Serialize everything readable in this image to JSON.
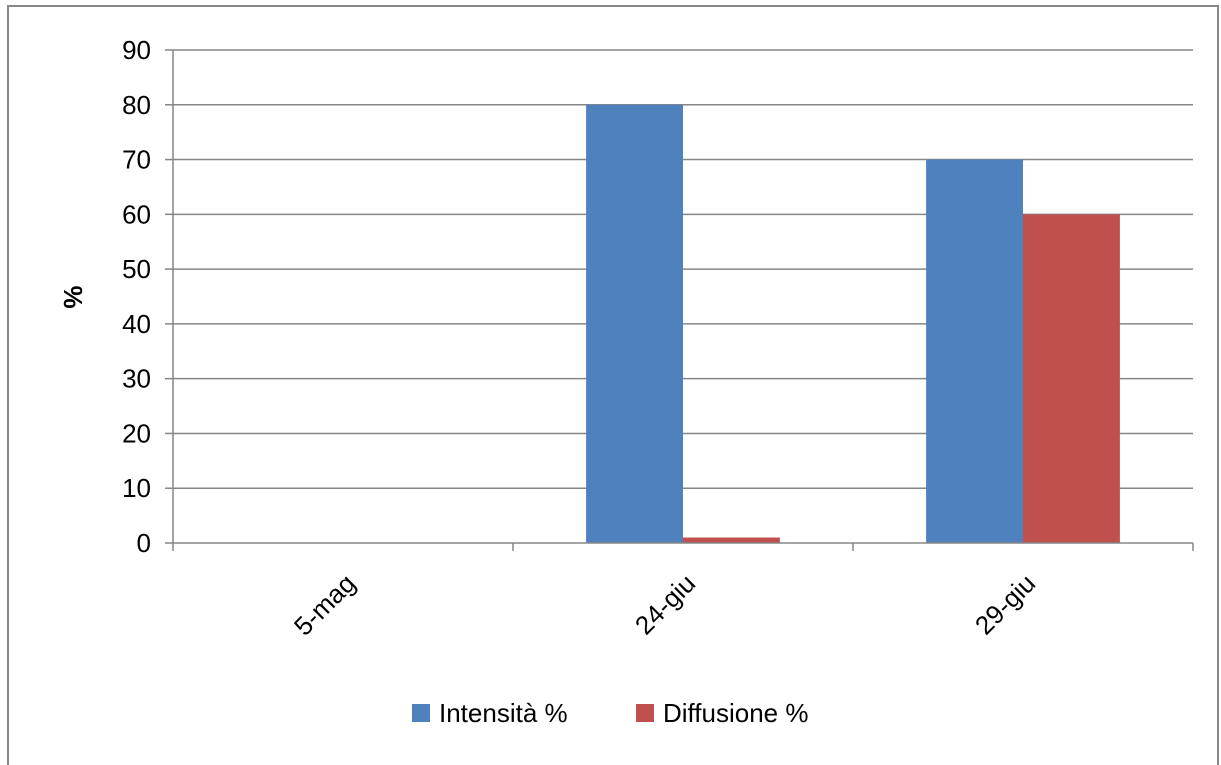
{
  "chart_data": {
    "type": "bar",
    "title": "",
    "xlabel": "",
    "ylabel": "%",
    "ylim": [
      0,
      90
    ],
    "yticks": [
      0,
      10,
      20,
      30,
      40,
      50,
      60,
      70,
      80,
      90
    ],
    "categories": [
      "5-mag",
      "24-giu",
      "29-giu"
    ],
    "series": [
      {
        "name": "Intensità %",
        "values": [
          0,
          80,
          70
        ],
        "color": "#4F81BD"
      },
      {
        "name": "Diffusione %",
        "values": [
          0,
          1,
          60
        ],
        "color": "#C0504D"
      }
    ],
    "grid": true,
    "legend_position": "bottom"
  }
}
